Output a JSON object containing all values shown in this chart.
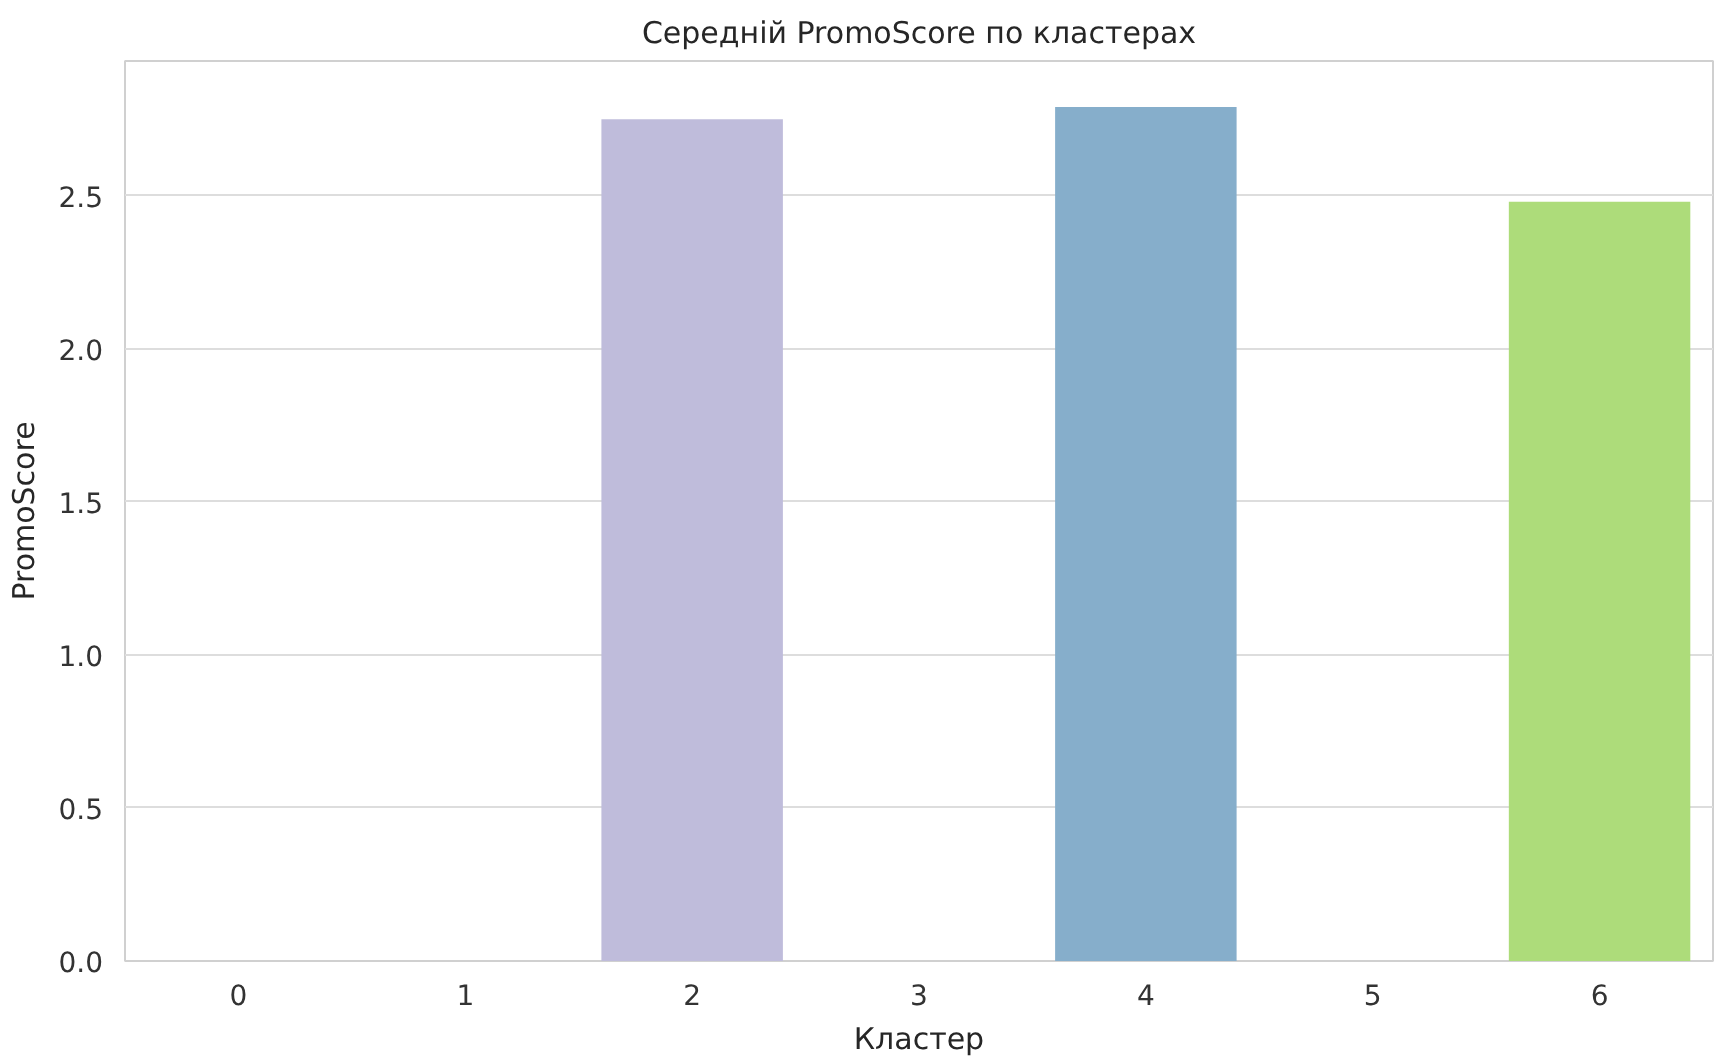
{
  "chart_data": {
    "type": "bar",
    "title": "Середній PromoScore по кластерах",
    "xlabel": "Кластер",
    "ylabel": "PromoScore",
    "categories": [
      "0",
      "1",
      "2",
      "3",
      "4",
      "5",
      "6"
    ],
    "values": [
      0,
      0,
      2.75,
      0,
      2.79,
      0,
      2.48
    ],
    "colors": [
      null,
      null,
      "#bfbcdb",
      null,
      "#86aecb",
      null,
      "#addc7a"
    ],
    "ylim": [
      0,
      2.94
    ],
    "yticks": [
      {
        "value": 0,
        "label": "0.0"
      },
      {
        "value": 0.5,
        "label": "0.5"
      },
      {
        "value": 1,
        "label": "1.0"
      },
      {
        "value": 1.5,
        "label": "1.5"
      },
      {
        "value": 2,
        "label": "2.0"
      },
      {
        "value": 2.5,
        "label": "2.5"
      }
    ],
    "grid": "y"
  }
}
